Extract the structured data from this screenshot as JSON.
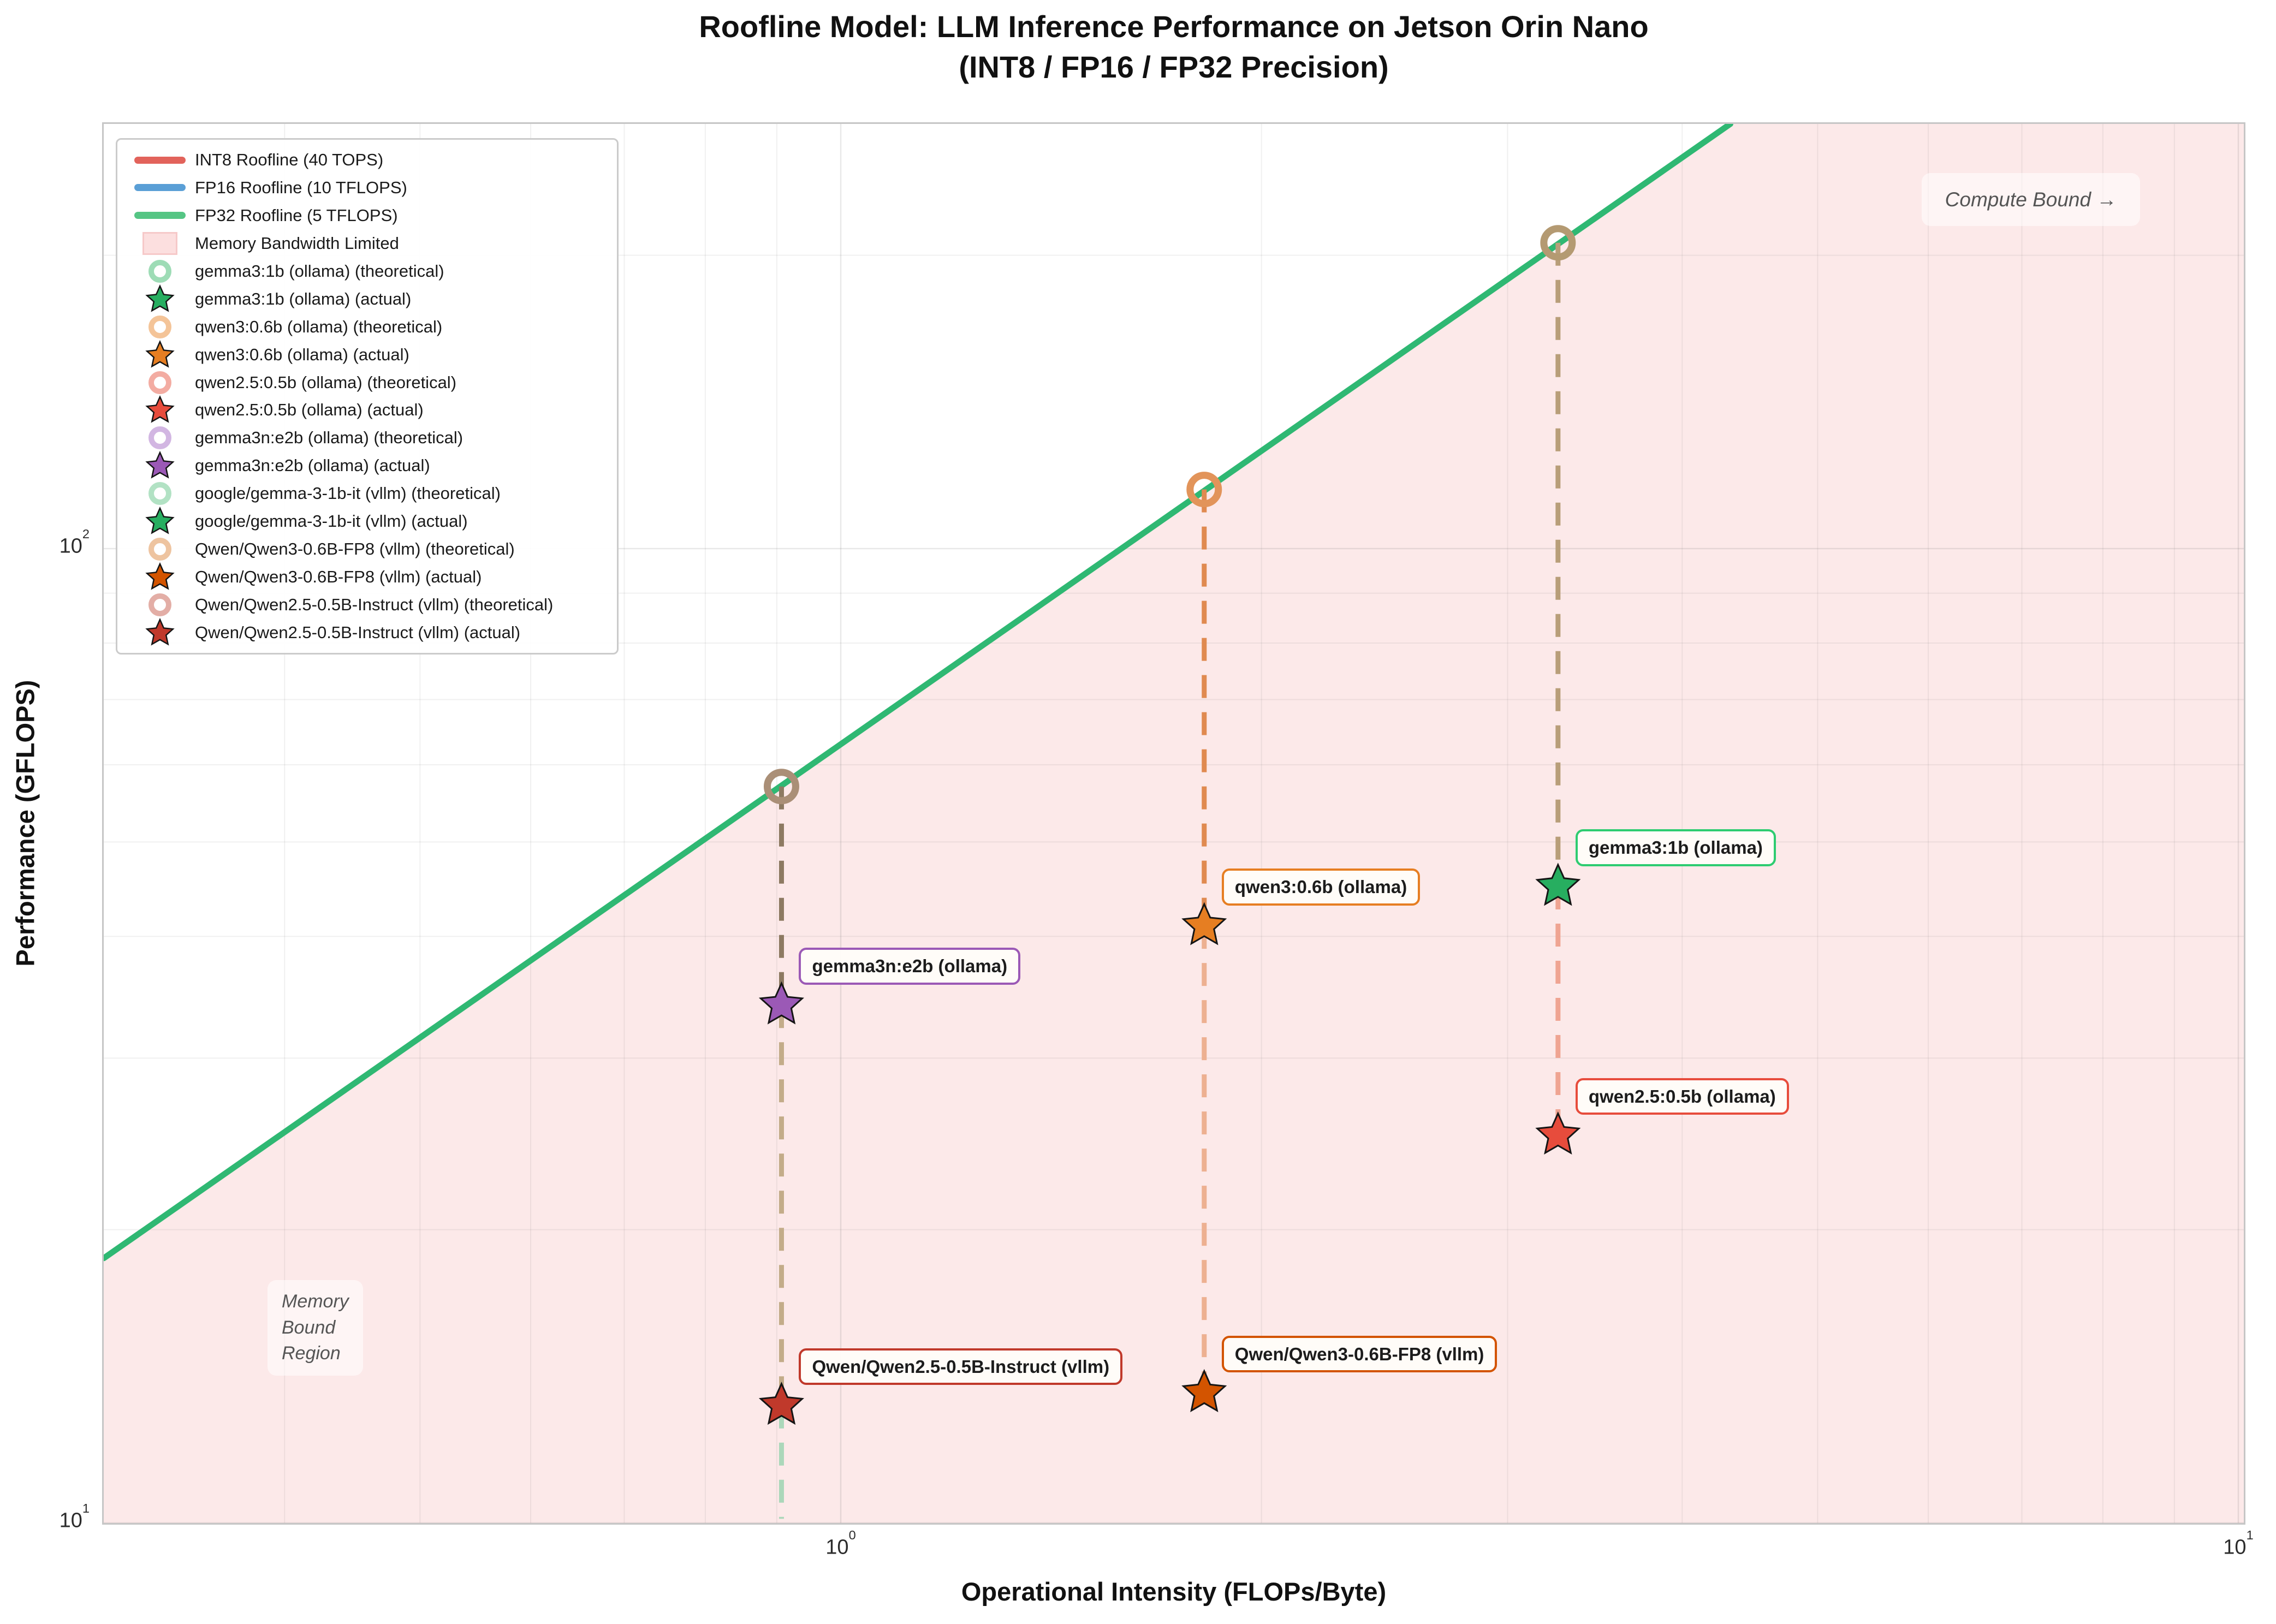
{
  "title": {
    "line1": "Roofline Model: LLM Inference Performance on Jetson Orin Nano",
    "line2": "(INT8 / FP16 / FP32 Precision)"
  },
  "axes": {
    "x_label": "Operational Intensity (FLOPs/Byte)",
    "y_label": "Performance (GFLOPS)",
    "x_ticks": [
      {
        "base": "10",
        "exp": "0",
        "value": 1
      },
      {
        "base": "10",
        "exp": "1",
        "value": 10
      }
    ],
    "y_ticks": [
      {
        "base": "10",
        "exp": "2",
        "value": 100
      },
      {
        "base": "10",
        "exp": "1",
        "value": 10
      }
    ]
  },
  "legend": {
    "items": [
      {
        "type": "line",
        "color": "#e2635b",
        "label": "INT8 Roofline (40 TOPS)"
      },
      {
        "type": "line",
        "color": "#5a9fd6",
        "label": "FP16 Roofline (10 TFLOPS)"
      },
      {
        "type": "line",
        "color": "#55c584",
        "label": "FP32 Roofline (5 TFLOPS)"
      },
      {
        "type": "patch",
        "color": "#fcdfdf",
        "border": "#f6c9c9",
        "label": "Memory Bandwidth Limited"
      },
      {
        "type": "ring",
        "color": "#9edcb6",
        "label": "gemma3:1b (ollama) (theoretical)"
      },
      {
        "type": "star",
        "color": "#27ae60",
        "label": "gemma3:1b (ollama) (actual)"
      },
      {
        "type": "ring",
        "color": "#f4c498",
        "label": "qwen3:0.6b (ollama) (theoretical)"
      },
      {
        "type": "star",
        "color": "#e67e22",
        "label": "qwen3:0.6b (ollama) (actual)"
      },
      {
        "type": "ring",
        "color": "#f3aca2",
        "label": "qwen2.5:0.5b (ollama) (theoretical)"
      },
      {
        "type": "star",
        "color": "#e74c3c",
        "label": "qwen2.5:0.5b (ollama) (actual)"
      },
      {
        "type": "ring",
        "color": "#d2b6e2",
        "label": "gemma3n:e2b (ollama) (theoretical)"
      },
      {
        "type": "star",
        "color": "#9b59b6",
        "label": "gemma3n:e2b (ollama) (actual)"
      },
      {
        "type": "ring",
        "color": "#b2e2c4",
        "label": "google/gemma-3-1b-it (vllm) (theoretical)"
      },
      {
        "type": "star",
        "color": "#27ae60",
        "label": "google/gemma-3-1b-it (vllm) (actual)"
      },
      {
        "type": "ring",
        "color": "#eec4a0",
        "label": "Qwen/Qwen3-0.6B-FP8 (vllm) (theoretical)"
      },
      {
        "type": "star",
        "color": "#d35400",
        "label": "Qwen/Qwen3-0.6B-FP8 (vllm) (actual)"
      },
      {
        "type": "ring",
        "color": "#e3aea6",
        "label": "Qwen/Qwen2.5-0.5B-Instruct (vllm) (theoretical)"
      },
      {
        "type": "star",
        "color": "#c0392b",
        "label": "Qwen/Qwen2.5-0.5B-Instruct (vllm) (actual)"
      }
    ]
  },
  "annotations": {
    "compute_bound": "Compute Bound →",
    "memory_bound_lines": "Memory\nBound\nRegion"
  },
  "chart_data": {
    "type": "scatter",
    "title": "Roofline Model: LLM Inference Performance on Jetson Orin Nano (INT8 / FP16 / FP32 Precision)",
    "xlabel": "Operational Intensity (FLOPs/Byte)",
    "ylabel": "Performance (GFLOPS)",
    "x_scale": "log",
    "y_scale": "log",
    "xlim": [
      0.297,
      10.09
    ],
    "ylim": [
      10,
      272.8
    ],
    "grid": true,
    "legend_position": "upper left",
    "rooflines": [
      {
        "name": "INT8 Roofline",
        "peak": "40 TOPS",
        "color": "#e2635b"
      },
      {
        "name": "FP16 Roofline",
        "peak": "10 TFLOPS",
        "color": "#5a9fd6"
      },
      {
        "name": "FP32 Roofline",
        "peak": "5 TFLOPS",
        "color": "#55c584"
      }
    ],
    "memory_bandwidth_diagonal": {
      "color": "#2fb873",
      "gflops_per_intensity": 63,
      "points": [
        {
          "oi": 0.297,
          "gflops": 18.7
        },
        {
          "oi": 4.33,
          "gflops": 272.8
        }
      ]
    },
    "memory_bound_region_color": "#fce9e9",
    "models": [
      {
        "name": "gemma3:1b (ollama)",
        "oi": 3.26,
        "theoretical_gflops": 206,
        "actual_gflops": 45,
        "star_color": "#27ae60",
        "label_visible": true,
        "label_border": "#2ecc71"
      },
      {
        "name": "qwen3:0.6b (ollama)",
        "oi": 1.82,
        "theoretical_gflops": 115,
        "actual_gflops": 41,
        "star_color": "#e67e22",
        "label_visible": true,
        "label_border": "#e67e22"
      },
      {
        "name": "qwen2.5:0.5b (ollama)",
        "oi": 3.26,
        "theoretical_gflops": 206,
        "actual_gflops": 25,
        "star_color": "#e74c3c",
        "label_visible": true,
        "label_border": "#e74c3c"
      },
      {
        "name": "gemma3n:e2b (ollama)",
        "oi": 0.907,
        "theoretical_gflops": 57,
        "actual_gflops": 34,
        "star_color": "#9b59b6",
        "label_visible": true,
        "label_border": "#9b59b6"
      },
      {
        "name": "google/gemma-3-1b-it (vllm)",
        "oi": 0.907,
        "theoretical_gflops": 57,
        "actual_gflops": null,
        "star_color": "#27ae60",
        "label_visible": false,
        "label_border": "#2ecc71"
      },
      {
        "name": "Qwen/Qwen3-0.6B-FP8 (vllm)",
        "oi": 1.82,
        "theoretical_gflops": 115,
        "actual_gflops": 13.6,
        "star_color": "#d35400",
        "label_visible": true,
        "label_border": "#d35400"
      },
      {
        "name": "Qwen/Qwen2.5-0.5B-Instruct (vllm)",
        "oi": 0.907,
        "theoretical_gflops": 57,
        "actual_gflops": 13.2,
        "star_color": "#c0392b",
        "label_visible": true,
        "label_border": "#c0392b"
      }
    ],
    "columns": [
      {
        "oi": 0.907,
        "ring_gflops": 57,
        "ring_color": "#aa8f77",
        "segments": [
          {
            "from": 57,
            "to": 34,
            "color": "#8d7a62"
          },
          {
            "from": 34,
            "to": 13.2,
            "color": "#c3ac89"
          },
          {
            "from": 13.2,
            "to": 10.1,
            "color": "#abd7ba"
          }
        ],
        "stars": [
          {
            "gflops": 34,
            "color": "#9b59b6",
            "name": "gemma3n:e2b (ollama)"
          },
          {
            "gflops": 13.2,
            "color": "#c0392b",
            "name": "Qwen/Qwen2.5-0.5B-Instruct (vllm)"
          }
        ]
      },
      {
        "oi": 1.82,
        "ring_gflops": 115,
        "ring_color": "#e2945a",
        "segments": [
          {
            "from": 115,
            "to": 41,
            "color": "#e08a50"
          },
          {
            "from": 41,
            "to": 13.6,
            "color": "#edb091"
          }
        ],
        "stars": [
          {
            "gflops": 41,
            "color": "#e67e22",
            "name": "qwen3:0.6b (ollama)"
          },
          {
            "gflops": 13.6,
            "color": "#d35400",
            "name": "Qwen/Qwen3-0.6B-FP8 (vllm)"
          }
        ]
      },
      {
        "oi": 3.26,
        "ring_gflops": 206,
        "ring_color": "#b49a72",
        "segments": [
          {
            "from": 206,
            "to": 45,
            "color": "#b89e79"
          },
          {
            "from": 45,
            "to": 25,
            "color": "#efa492"
          }
        ],
        "stars": [
          {
            "gflops": 45,
            "color": "#27ae60",
            "name": "gemma3:1b (ollama)"
          },
          {
            "gflops": 25,
            "color": "#e74c3c",
            "name": "qwen2.5:0.5b (ollama)"
          }
        ]
      }
    ]
  }
}
